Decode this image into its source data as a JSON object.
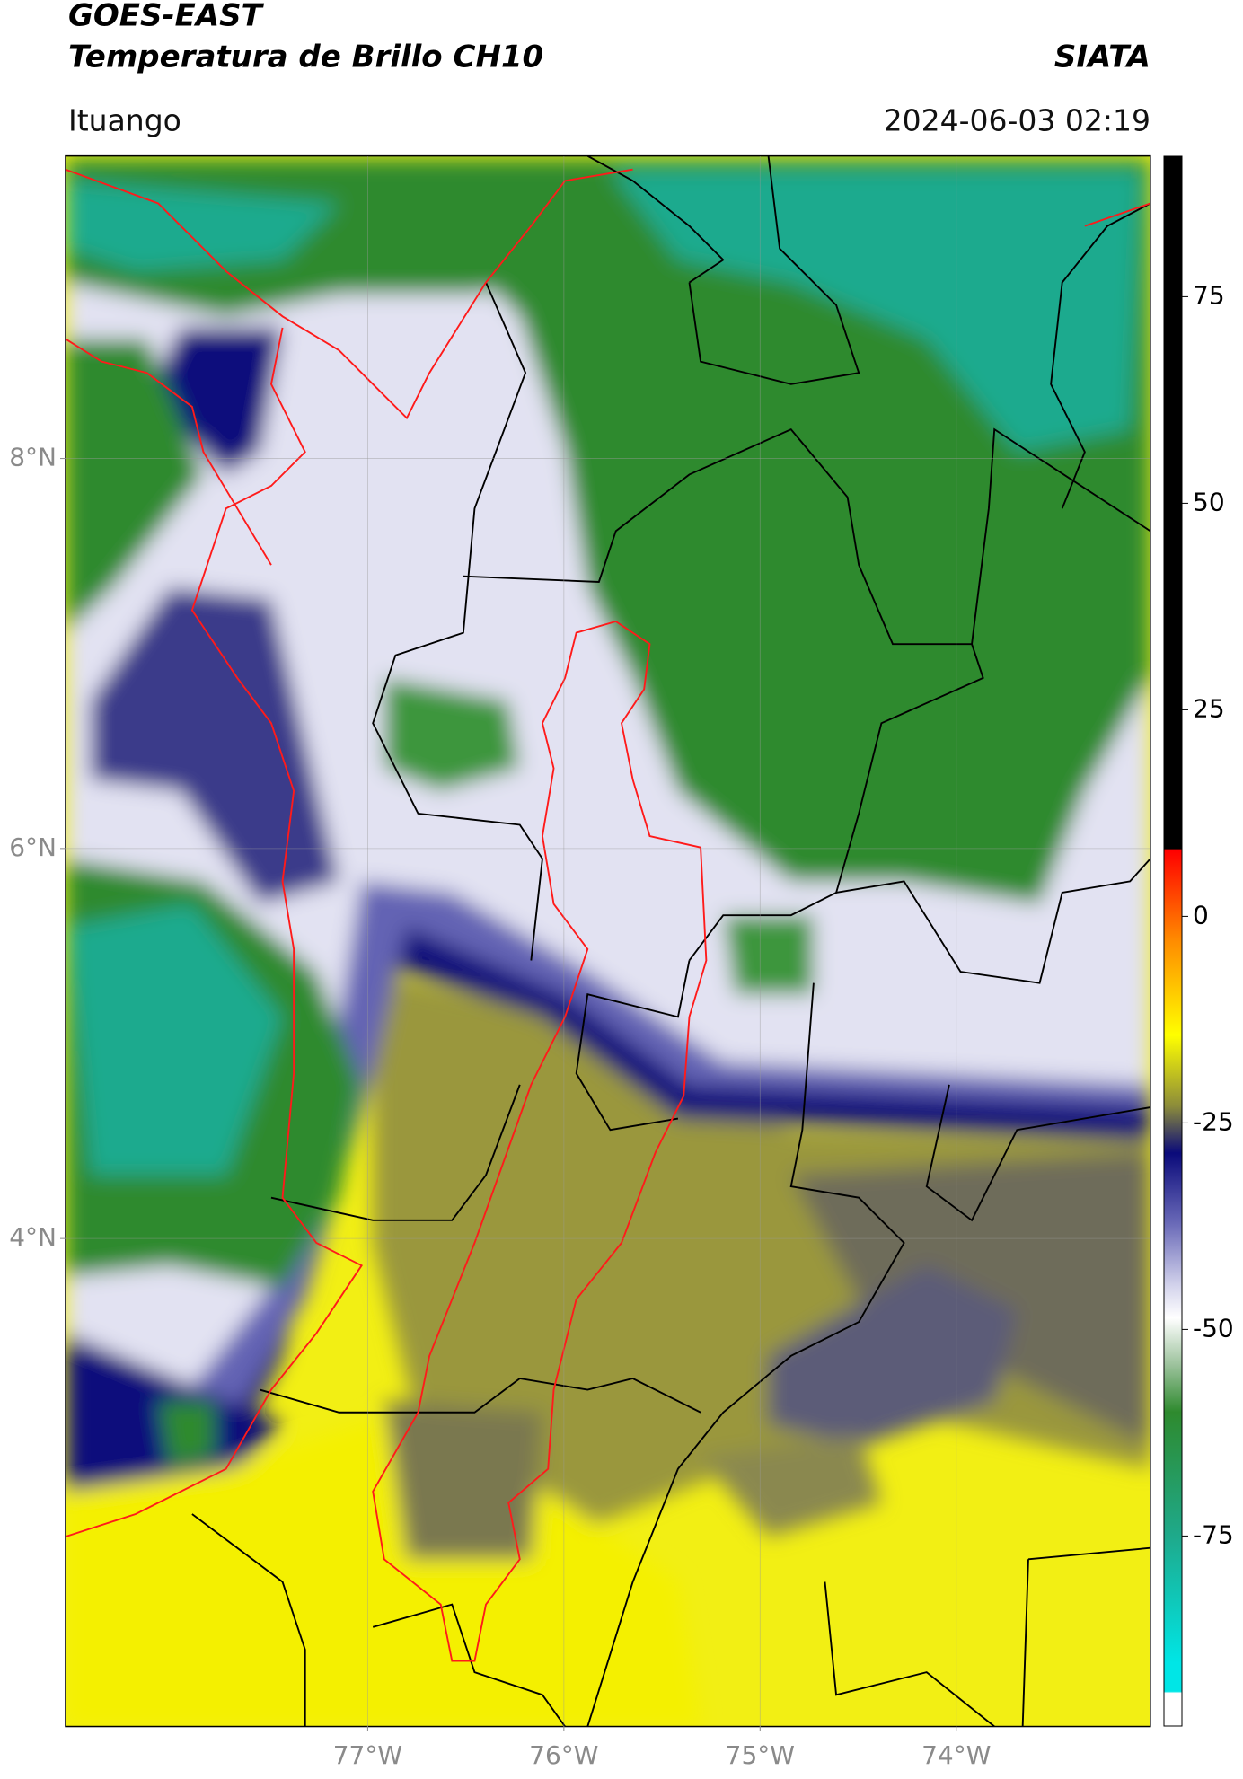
{
  "chart_data": {
    "type": "map",
    "title": "GOES-EAST",
    "subtitle": "Temperatura de Brillo CH10",
    "source": "SIATA",
    "location": "Ituango",
    "timestamp": "2024-06-03 02:19",
    "xlim": [
      -78.54,
      -73.01
    ],
    "ylim": [
      1.5,
      9.55
    ],
    "xticks": [
      {
        "value": -77,
        "label": "77°W"
      },
      {
        "value": -76,
        "label": "76°W"
      },
      {
        "value": -75,
        "label": "75°W"
      },
      {
        "value": -74,
        "label": "74°W"
      }
    ],
    "yticks": [
      {
        "value": 4,
        "label": "4°N"
      },
      {
        "value": 6,
        "label": "6°N"
      },
      {
        "value": 8,
        "label": "8°N"
      }
    ],
    "grid": true,
    "colorbar": {
      "clim": [
        -98,
        92
      ],
      "ticks": [
        -75,
        -50,
        -25,
        0,
        25,
        50,
        75
      ]
    }
  }
}
